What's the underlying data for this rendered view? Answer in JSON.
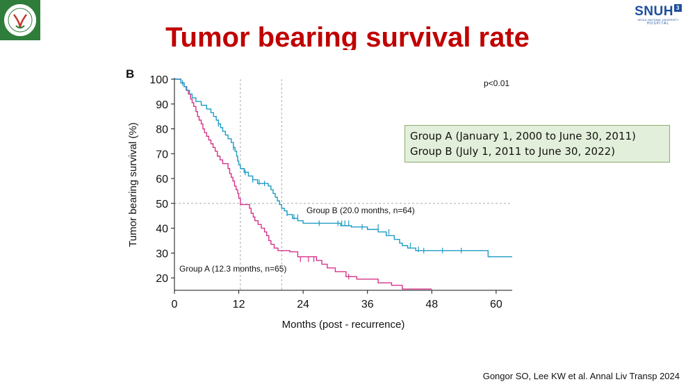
{
  "slide": {
    "title": "Tumor bearing survival rate",
    "right_logo": {
      "text": "SNUH",
      "mark": "3",
      "subtitle": "SEOUL NATIONAL UNIVERSITY",
      "hospital": "HOSPITAL"
    },
    "left_logo_icon": "society-emblem-logo",
    "panel_label": "B",
    "p_value": "p<0.01",
    "legend_lines": [
      "Group A (January 1, 2000 to June 30, 2011)",
      "Group B (July 1, 2011 to June 30, 2022)"
    ],
    "citation": "Gongor SO, Lee KW et al. Annal Liv Transp 2024"
  },
  "chart_data": {
    "type": "line",
    "subtype": "kaplan-meier step",
    "xlabel": "Months (post - recurrence)",
    "ylabel": "Tumor bearing survival (%)",
    "xlim": [
      0,
      63
    ],
    "ylim": [
      15,
      100
    ],
    "xticks": [
      0,
      12,
      24,
      36,
      48,
      60
    ],
    "yticks": [
      20,
      30,
      40,
      50,
      60,
      70,
      80,
      90,
      100
    ],
    "reference_lines": {
      "median_y": 50,
      "vertical_x": [
        12.3,
        20.0
      ]
    },
    "series": [
      {
        "name": "Group A (12.3 months, n=65)",
        "color": "#d6338a",
        "points": [
          [
            0,
            100
          ],
          [
            1.2,
            98.5
          ],
          [
            1.8,
            97
          ],
          [
            2.2,
            95.5
          ],
          [
            2.6,
            94
          ],
          [
            3.0,
            92
          ],
          [
            3.3,
            90.5
          ],
          [
            3.6,
            89
          ],
          [
            4.0,
            87
          ],
          [
            4.3,
            85
          ],
          [
            4.6,
            83.5
          ],
          [
            5.0,
            82
          ],
          [
            5.3,
            80
          ],
          [
            5.6,
            78.5
          ],
          [
            6.0,
            77
          ],
          [
            6.4,
            75.5
          ],
          [
            6.8,
            74
          ],
          [
            7.2,
            72.5
          ],
          [
            7.6,
            71
          ],
          [
            8.0,
            69
          ],
          [
            8.5,
            67.5
          ],
          [
            9.0,
            66
          ],
          [
            10.0,
            64
          ],
          [
            10.3,
            62
          ],
          [
            10.6,
            60.5
          ],
          [
            10.9,
            59
          ],
          [
            11.2,
            57
          ],
          [
            11.5,
            55.5
          ],
          [
            11.8,
            54
          ],
          [
            12.0,
            52
          ],
          [
            12.3,
            49.5
          ],
          [
            14.0,
            48
          ],
          [
            14.3,
            46
          ],
          [
            14.7,
            44.5
          ],
          [
            15.0,
            43
          ],
          [
            15.6,
            41.5
          ],
          [
            16.2,
            40
          ],
          [
            16.8,
            38.5
          ],
          [
            17.2,
            37
          ],
          [
            17.6,
            35
          ],
          [
            18.0,
            33.5
          ],
          [
            18.6,
            32
          ],
          [
            19.3,
            31
          ],
          [
            21.5,
            30.5
          ],
          [
            23.0,
            28.5
          ],
          [
            26.5,
            27
          ],
          [
            27.5,
            25.5
          ],
          [
            28.5,
            24
          ],
          [
            30.0,
            22.5
          ],
          [
            32.0,
            20.5
          ],
          [
            34.0,
            19.5
          ],
          [
            38.0,
            18
          ],
          [
            40.5,
            17
          ],
          [
            42.5,
            15.5
          ],
          [
            48.0,
            15.5
          ]
        ],
        "censored": [
          [
            23.5,
            27.5
          ],
          [
            25,
            27.5
          ],
          [
            26,
            27.5
          ],
          [
            32.5,
            20.5
          ]
        ]
      },
      {
        "name": "Group B (20.0 months, n=64)",
        "color": "#1e9cc6",
        "points": [
          [
            0,
            100
          ],
          [
            1.2,
            98.5
          ],
          [
            1.8,
            97
          ],
          [
            2.3,
            95.5
          ],
          [
            2.8,
            94
          ],
          [
            3.3,
            92.5
          ],
          [
            4.0,
            91
          ],
          [
            5.0,
            89.5
          ],
          [
            6.0,
            88
          ],
          [
            6.8,
            86.5
          ],
          [
            7.3,
            85
          ],
          [
            7.8,
            83.5
          ],
          [
            8.2,
            82
          ],
          [
            8.6,
            80.5
          ],
          [
            9.0,
            79
          ],
          [
            9.5,
            77.5
          ],
          [
            10.0,
            76
          ],
          [
            10.6,
            74.5
          ],
          [
            11.0,
            72.5
          ],
          [
            11.3,
            71
          ],
          [
            11.6,
            69
          ],
          [
            11.8,
            67
          ],
          [
            12.0,
            65.5
          ],
          [
            12.3,
            64
          ],
          [
            13.0,
            62.5
          ],
          [
            13.8,
            61
          ],
          [
            14.6,
            59.5
          ],
          [
            15.5,
            58
          ],
          [
            17.5,
            57
          ],
          [
            18.0,
            55.5
          ],
          [
            18.4,
            54
          ],
          [
            18.8,
            52.5
          ],
          [
            19.2,
            51
          ],
          [
            19.6,
            49.5
          ],
          [
            20.0,
            48
          ],
          [
            20.5,
            47
          ],
          [
            21.0,
            45.5
          ],
          [
            22.0,
            44
          ],
          [
            23.0,
            43
          ],
          [
            24.0,
            42
          ],
          [
            31.0,
            41
          ],
          [
            33.0,
            40.5
          ],
          [
            36.0,
            39.5
          ],
          [
            38.0,
            38.5
          ],
          [
            39.5,
            37
          ],
          [
            41.0,
            35.5
          ],
          [
            42.0,
            34
          ],
          [
            42.5,
            33
          ],
          [
            43.5,
            32
          ],
          [
            45.0,
            31
          ],
          [
            58.0,
            31
          ],
          [
            58.5,
            28.5
          ],
          [
            63.0,
            28.5
          ]
        ],
        "censored": [
          [
            1.5,
            98.5
          ],
          [
            8.2,
            82
          ],
          [
            11.0,
            72.5
          ],
          [
            13.2,
            62.5
          ],
          [
            14.6,
            59.5
          ],
          [
            15.8,
            58.5
          ],
          [
            16.8,
            58
          ],
          [
            21.0,
            46
          ],
          [
            22.3,
            44.5
          ],
          [
            23.0,
            44.5
          ],
          [
            27.0,
            42
          ],
          [
            30.5,
            42
          ],
          [
            31.2,
            42
          ],
          [
            31.8,
            42
          ],
          [
            32.5,
            42
          ],
          [
            35.0,
            40.5
          ],
          [
            38.0,
            40.5
          ],
          [
            40.0,
            38.5
          ],
          [
            44.0,
            33
          ],
          [
            45.5,
            31.5
          ],
          [
            46.5,
            31
          ],
          [
            50.0,
            31
          ],
          [
            53.5,
            31
          ]
        ]
      }
    ]
  }
}
